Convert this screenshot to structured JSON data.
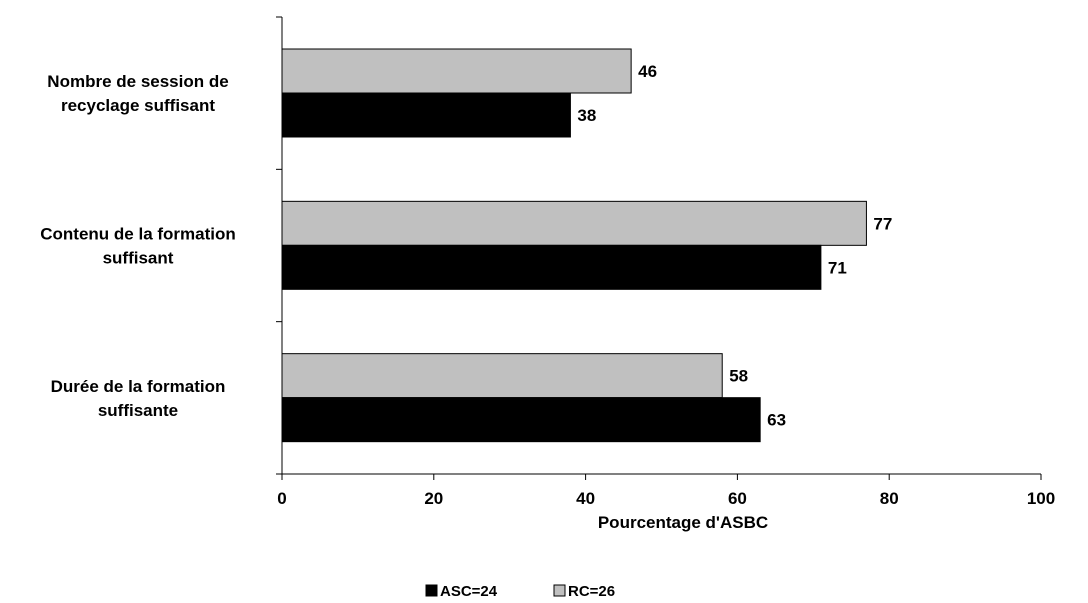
{
  "chart_data": {
    "type": "bar",
    "orientation": "horizontal",
    "categories": [
      [
        "Nombre de session de",
        "recyclage suffisant"
      ],
      [
        "Contenu de la formation",
        "suffisant"
      ],
      [
        "Durée de la formation",
        "suffisante"
      ]
    ],
    "series": [
      {
        "name": "RC=26",
        "color": "#c0c0c0",
        "values": [
          46,
          77,
          58
        ]
      },
      {
        "name": "ASC=24",
        "color": "#000000",
        "values": [
          38,
          71,
          63
        ]
      }
    ],
    "legend_order": [
      1,
      0
    ],
    "legend_position": "bottom",
    "xlabel": "Pourcentage d'ASBC",
    "ylabel": "",
    "xlim": [
      0,
      100
    ],
    "xticks": [
      "0",
      "20",
      "40",
      "60",
      "80",
      "100"
    ],
    "grid": false
  }
}
